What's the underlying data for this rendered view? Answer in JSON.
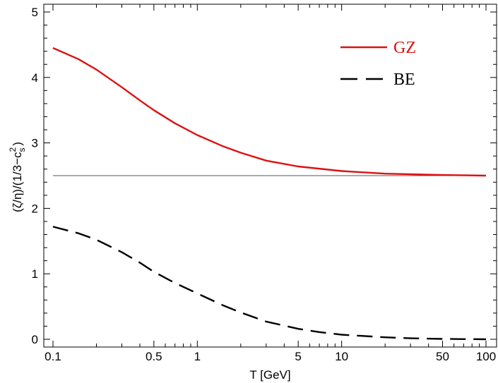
{
  "chart_data": {
    "type": "line",
    "title": "",
    "xlabel": "T [GeV]",
    "ylabel": "(ζ/η)/(1/3−c_s^2)",
    "ylabel_parts": {
      "pre": "(ζ/η)/(1/3−c",
      "sub": "s",
      "sup": "2",
      "post": ")"
    },
    "x_scale": "log",
    "xlim": [
      0.1,
      100
    ],
    "ylim": [
      0,
      5
    ],
    "x_ticks_major": [
      0.1,
      0.5,
      1,
      5,
      10,
      50,
      100
    ],
    "x_tick_labels": [
      "0.1",
      "0.5",
      "1",
      "5",
      "10",
      "50",
      "100"
    ],
    "y_ticks_major": [
      0,
      1,
      2,
      3,
      4,
      5
    ],
    "y_tick_labels": [
      "0",
      "1",
      "2",
      "3",
      "4",
      "5"
    ],
    "grid": false,
    "legend_placement": "top-right",
    "reference_line": {
      "y": 2.5,
      "color": "#555555"
    },
    "series": [
      {
        "name": "GZ",
        "color": "#dd1111",
        "dash": "solid",
        "x": [
          0.1,
          0.15,
          0.2,
          0.3,
          0.4,
          0.5,
          0.7,
          1,
          1.5,
          2,
          3,
          5,
          10,
          20,
          50,
          100
        ],
        "y": [
          4.45,
          4.28,
          4.12,
          3.85,
          3.65,
          3.5,
          3.3,
          3.12,
          2.95,
          2.85,
          2.73,
          2.64,
          2.57,
          2.53,
          2.51,
          2.5
        ]
      },
      {
        "name": "BE",
        "color": "#000000",
        "dash": "dashed",
        "x": [
          0.1,
          0.15,
          0.2,
          0.3,
          0.4,
          0.5,
          0.7,
          1,
          1.5,
          2,
          3,
          5,
          7,
          10,
          20,
          30,
          50,
          100
        ],
        "y": [
          1.72,
          1.62,
          1.52,
          1.33,
          1.17,
          1.03,
          0.86,
          0.7,
          0.52,
          0.41,
          0.27,
          0.16,
          0.11,
          0.07,
          0.03,
          0.015,
          0.005,
          0.0
        ]
      }
    ]
  }
}
